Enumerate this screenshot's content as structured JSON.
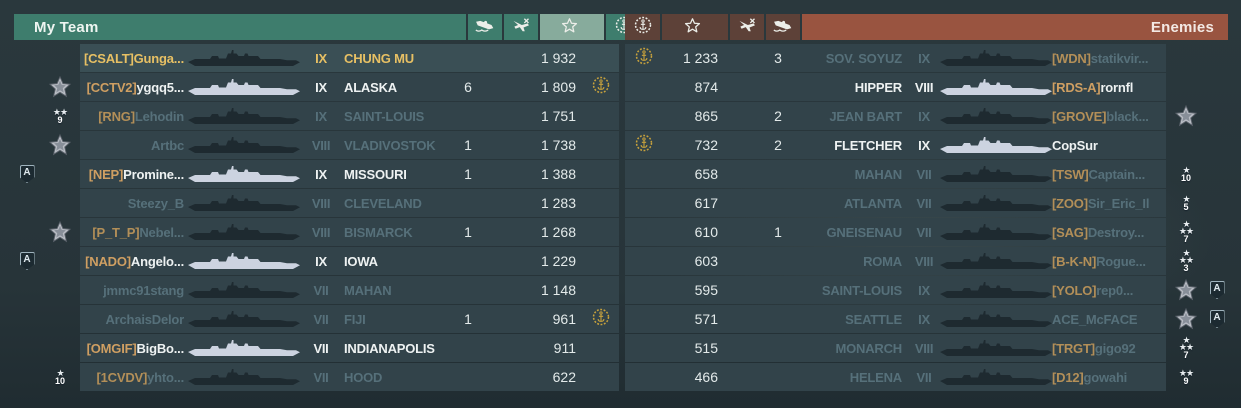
{
  "colors": {
    "my_team_header": "#3e7d6d",
    "score_column_highlight": "#87ab9c",
    "enemy_stats_header": "#5d4138",
    "enemy_header": "#995440",
    "row_background": "#32434a",
    "self_text": "#e7c064",
    "alive_text": "#eef2f2",
    "dead_text": "#56707a",
    "clan_tag": "#b38f58",
    "achievement_gold": "#c8a23c"
  },
  "my_team": {
    "title": "My Team",
    "columns": [
      "ships-destroyed",
      "aircraft-destroyed",
      "score",
      "achievement"
    ],
    "rows": [
      {
        "division": "",
        "medal": "",
        "stars": 0,
        "stars_num": "",
        "tag": "[CSALT]",
        "name": "Gunga...",
        "tier": "IX",
        "ship": "CHUNG MU",
        "ships_destroyed": "",
        "aircraft_destroyed": "",
        "score": "1 932",
        "achievement": false,
        "status": "self"
      },
      {
        "division": "",
        "medal": "medal",
        "stars": 0,
        "stars_num": "",
        "tag": "[CCTV2]",
        "name": "ygqq5...",
        "tier": "IX",
        "ship": "ALASKA",
        "ships_destroyed": "6",
        "aircraft_destroyed": "",
        "score": "1 809",
        "achievement": true,
        "status": "alive"
      },
      {
        "division": "",
        "medal": "stars",
        "stars": 2,
        "stars_num": "9",
        "tag": "[RNG]",
        "name": "Lehodin",
        "tier": "IX",
        "ship": "SAINT-LOUIS",
        "ships_destroyed": "",
        "aircraft_destroyed": "",
        "score": "1 751",
        "achievement": false,
        "status": "dead"
      },
      {
        "division": "",
        "medal": "medal",
        "stars": 0,
        "stars_num": "",
        "tag": "",
        "name": "Artbc",
        "tier": "VIII",
        "ship": "VLADIVOSTOK",
        "ships_destroyed": "1",
        "aircraft_destroyed": "",
        "score": "1 738",
        "achievement": false,
        "status": "dead"
      },
      {
        "division": "A",
        "medal": "",
        "stars": 0,
        "stars_num": "",
        "tag": "[NEP]",
        "name": "Promine...",
        "tier": "IX",
        "ship": "MISSOURI",
        "ships_destroyed": "1",
        "aircraft_destroyed": "",
        "score": "1 388",
        "achievement": false,
        "status": "alive"
      },
      {
        "division": "",
        "medal": "",
        "stars": 0,
        "stars_num": "",
        "tag": "",
        "name": "Steezy_B",
        "tier": "VIII",
        "ship": "CLEVELAND",
        "ships_destroyed": "",
        "aircraft_destroyed": "",
        "score": "1 283",
        "achievement": false,
        "status": "dead"
      },
      {
        "division": "",
        "medal": "medal",
        "stars": 0,
        "stars_num": "",
        "tag": "[P_T_P]",
        "name": "Nebel...",
        "tier": "VIII",
        "ship": "BISMARCK",
        "ships_destroyed": "1",
        "aircraft_destroyed": "",
        "score": "1 268",
        "achievement": false,
        "status": "dead"
      },
      {
        "division": "A",
        "medal": "",
        "stars": 0,
        "stars_num": "",
        "tag": "[NADO]",
        "name": "Angelo...",
        "tier": "IX",
        "ship": "IOWA",
        "ships_destroyed": "",
        "aircraft_destroyed": "",
        "score": "1 229",
        "achievement": false,
        "status": "alive"
      },
      {
        "division": "",
        "medal": "",
        "stars": 0,
        "stars_num": "",
        "tag": "",
        "name": "jmmc91stang",
        "tier": "VII",
        "ship": "MAHAN",
        "ships_destroyed": "",
        "aircraft_destroyed": "",
        "score": "1 148",
        "achievement": false,
        "status": "dead"
      },
      {
        "division": "",
        "medal": "",
        "stars": 0,
        "stars_num": "",
        "tag": "",
        "name": "ArchaisDelor",
        "tier": "VII",
        "ship": "FIJI",
        "ships_destroyed": "1",
        "aircraft_destroyed": "",
        "score": "961",
        "achievement": true,
        "status": "dead"
      },
      {
        "division": "",
        "medal": "",
        "stars": 0,
        "stars_num": "",
        "tag": "[OMGIF]",
        "name": "BigBo...",
        "tier": "VII",
        "ship": "INDIANAPOLIS",
        "ships_destroyed": "",
        "aircraft_destroyed": "",
        "score": "911",
        "achievement": false,
        "status": "alive"
      },
      {
        "division": "",
        "medal": "stars",
        "stars": 1,
        "stars_num": "10",
        "tag": "[1CVDV]",
        "name": "yhto...",
        "tier": "VII",
        "ship": "HOOD",
        "ships_destroyed": "",
        "aircraft_destroyed": "",
        "score": "622",
        "achievement": false,
        "status": "dead"
      }
    ]
  },
  "enemies": {
    "title": "Enemies",
    "columns": [
      "achievement",
      "score",
      "aircraft-destroyed",
      "ships-destroyed"
    ],
    "rows": [
      {
        "achievement": true,
        "score": "1 233",
        "aircraft_destroyed": "",
        "ships_destroyed": "3",
        "ship": "SOV. SOYUZ",
        "tier": "IX",
        "tag": "[WDN]",
        "name": "statikvir...",
        "medal": "",
        "stars": 0,
        "stars_num": "",
        "division": "",
        "status": "dead"
      },
      {
        "achievement": false,
        "score": "874",
        "aircraft_destroyed": "",
        "ships_destroyed": "",
        "ship": "HIPPER",
        "tier": "VIII",
        "tag": "[RDS-A]",
        "name": "rornfl",
        "medal": "",
        "stars": 0,
        "stars_num": "",
        "division": "",
        "status": "alive"
      },
      {
        "achievement": false,
        "score": "865",
        "aircraft_destroyed": "",
        "ships_destroyed": "2",
        "ship": "JEAN BART",
        "tier": "IX",
        "tag": "[GROVE]",
        "name": "black...",
        "medal": "medal",
        "stars": 0,
        "stars_num": "",
        "division": "",
        "status": "dead"
      },
      {
        "achievement": true,
        "score": "732",
        "aircraft_destroyed": "",
        "ships_destroyed": "2",
        "ship": "FLETCHER",
        "tier": "IX",
        "tag": "",
        "name": "CopSur",
        "medal": "",
        "stars": 0,
        "stars_num": "",
        "division": "",
        "status": "alive"
      },
      {
        "achievement": false,
        "score": "658",
        "aircraft_destroyed": "",
        "ships_destroyed": "",
        "ship": "MAHAN",
        "tier": "VII",
        "tag": "[TSW]",
        "name": "Captain...",
        "medal": "stars",
        "stars": 1,
        "stars_num": "10",
        "division": "",
        "status": "dead"
      },
      {
        "achievement": false,
        "score": "617",
        "aircraft_destroyed": "",
        "ships_destroyed": "",
        "ship": "ATLANTA",
        "tier": "VII",
        "tag": "[ZOO]",
        "name": "Sir_Eric_Il",
        "medal": "stars",
        "stars": 1,
        "stars_num": "5",
        "division": "",
        "status": "dead"
      },
      {
        "achievement": false,
        "score": "610",
        "aircraft_destroyed": "",
        "ships_destroyed": "1",
        "ship": "GNEISENAU",
        "tier": "VII",
        "tag": "[SAG]",
        "name": "Destroy...",
        "medal": "stars",
        "stars": 3,
        "stars_num": "7",
        "division": "",
        "status": "dead"
      },
      {
        "achievement": false,
        "score": "603",
        "aircraft_destroyed": "",
        "ships_destroyed": "",
        "ship": "ROMA",
        "tier": "VIII",
        "tag": "[B-K-N]",
        "name": "Rogue...",
        "medal": "stars",
        "stars": 3,
        "stars_num": "3",
        "division": "",
        "status": "dead"
      },
      {
        "achievement": false,
        "score": "595",
        "aircraft_destroyed": "",
        "ships_destroyed": "",
        "ship": "SAINT-LOUIS",
        "tier": "IX",
        "tag": "[YOLO]",
        "name": "rep0...",
        "medal": "medal",
        "stars": 0,
        "stars_num": "",
        "division": "A",
        "status": "dead"
      },
      {
        "achievement": false,
        "score": "571",
        "aircraft_destroyed": "",
        "ships_destroyed": "",
        "ship": "SEATTLE",
        "tier": "IX",
        "tag": "",
        "name": "ACE_McFACE",
        "medal": "medal",
        "stars": 0,
        "stars_num": "",
        "division": "A",
        "status": "dead"
      },
      {
        "achievement": false,
        "score": "515",
        "aircraft_destroyed": "",
        "ships_destroyed": "",
        "ship": "MONARCH",
        "tier": "VIII",
        "tag": "[TRGT]",
        "name": "gigo92",
        "medal": "stars",
        "stars": 3,
        "stars_num": "7",
        "division": "",
        "status": "dead"
      },
      {
        "achievement": false,
        "score": "466",
        "aircraft_destroyed": "",
        "ships_destroyed": "",
        "ship": "HELENA",
        "tier": "VII",
        "tag": "[D12]",
        "name": "gowahi",
        "medal": "stars",
        "stars": 2,
        "stars_num": "9",
        "division": "",
        "status": "dead"
      }
    ]
  }
}
